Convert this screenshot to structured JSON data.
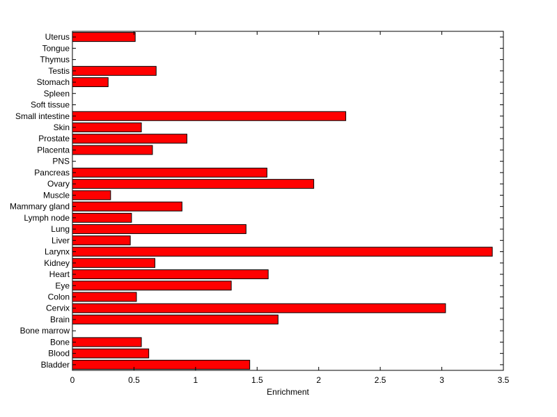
{
  "chart_data": {
    "type": "bar",
    "orientation": "horizontal",
    "title": "",
    "xlabel": "Enrichment",
    "ylabel": "",
    "xlim": [
      0,
      3.5
    ],
    "x_ticks": [
      0,
      0.5,
      1,
      1.5,
      2,
      2.5,
      3,
      3.5
    ],
    "x_tick_labels": [
      "0",
      "0.5",
      "1",
      "1.5",
      "2",
      "2.5",
      "3",
      "3.5"
    ],
    "grid": false,
    "bar_color": "#ff0000",
    "bar_edge_color": "#000000",
    "categories": [
      "Bladder",
      "Blood",
      "Bone",
      "Bone marrow",
      "Brain",
      "Cervix",
      "Colon",
      "Eye",
      "Heart",
      "Kidney",
      "Larynx",
      "Liver",
      "Lung",
      "Lymph node",
      "Mammary gland",
      "Muscle",
      "Ovary",
      "Pancreas",
      "PNS",
      "Placenta",
      "Prostate",
      "Skin",
      "Small intestine",
      "Soft tissue",
      "Spleen",
      "Stomach",
      "Testis",
      "Thymus",
      "Tongue",
      "Uterus"
    ],
    "values": [
      1.44,
      0.62,
      0.56,
      0,
      1.67,
      3.03,
      0.52,
      1.29,
      1.59,
      0.67,
      3.41,
      0.47,
      1.41,
      0.48,
      0.89,
      0.31,
      1.96,
      1.58,
      0,
      0.65,
      0.93,
      0.56,
      2.22,
      0,
      0,
      0.29,
      0.68,
      0,
      0,
      0.51
    ]
  }
}
